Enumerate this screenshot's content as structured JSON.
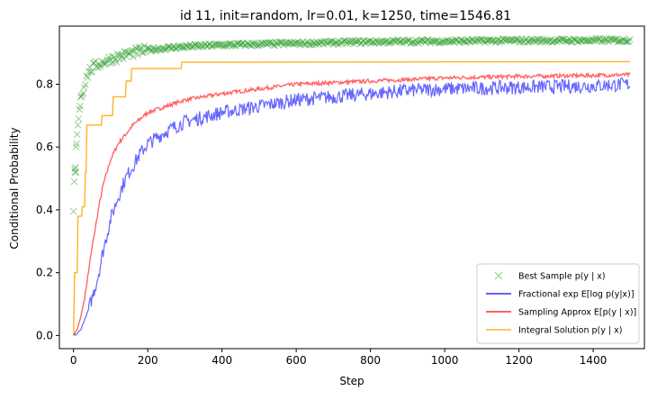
{
  "chart_data": {
    "type": "line",
    "title": "id 11, init=random, lr=0.01, k=1250, time=1546.81",
    "xlabel": "Step",
    "ylabel": "Conditional Probability",
    "xlim": [
      -38,
      1538
    ],
    "ylim": [
      -0.042,
      0.985
    ],
    "xticks": [
      0,
      200,
      400,
      600,
      800,
      1000,
      1200,
      1400
    ],
    "xtick_labels": [
      "0",
      "200",
      "400",
      "600",
      "800",
      "1000",
      "1200",
      "1400"
    ],
    "yticks": [
      0.0,
      0.2,
      0.4,
      0.6,
      0.8
    ],
    "ytick_labels": [
      "0.0",
      "0.2",
      "0.4",
      "0.6",
      "0.8"
    ],
    "grid": false,
    "legend_position": "lower-right",
    "series": [
      {
        "name": "Best Sample p(y | x)",
        "marker": "x",
        "color": "#2ca02c",
        "points": [
          [
            0,
            0.395
          ],
          [
            2,
            0.49
          ],
          [
            3,
            0.53
          ],
          [
            4,
            0.52
          ],
          [
            5,
            0.535
          ],
          [
            7,
            0.6
          ],
          [
            8,
            0.62
          ],
          [
            10,
            0.64
          ],
          [
            12,
            0.67
          ],
          [
            14,
            0.69
          ],
          [
            16,
            0.72
          ],
          [
            18,
            0.73
          ],
          [
            20,
            0.76
          ],
          [
            25,
            0.78
          ],
          [
            30,
            0.8
          ],
          [
            35,
            0.82
          ],
          [
            40,
            0.84
          ],
          [
            50,
            0.85
          ],
          [
            60,
            0.86
          ],
          [
            80,
            0.87
          ],
          [
            100,
            0.88
          ],
          [
            130,
            0.89
          ],
          [
            160,
            0.9
          ],
          [
            200,
            0.91
          ],
          [
            300,
            0.92
          ],
          [
            400,
            0.925
          ],
          [
            600,
            0.93
          ],
          [
            800,
            0.935
          ],
          [
            1000,
            0.937
          ],
          [
            1200,
            0.939
          ],
          [
            1500,
            0.94
          ]
        ]
      },
      {
        "name": "Fractional exp E[log p(y|x)]",
        "color": "#0000ff",
        "points": [
          [
            0,
            0.0
          ],
          [
            10,
            0.005
          ],
          [
            20,
            0.02
          ],
          [
            30,
            0.05
          ],
          [
            40,
            0.08
          ],
          [
            50,
            0.12
          ],
          [
            60,
            0.16
          ],
          [
            70,
            0.21
          ],
          [
            80,
            0.27
          ],
          [
            90,
            0.32
          ],
          [
            100,
            0.37
          ],
          [
            120,
            0.44
          ],
          [
            140,
            0.5
          ],
          [
            160,
            0.54
          ],
          [
            180,
            0.58
          ],
          [
            200,
            0.61
          ],
          [
            250,
            0.65
          ],
          [
            300,
            0.68
          ],
          [
            400,
            0.71
          ],
          [
            500,
            0.73
          ],
          [
            600,
            0.75
          ],
          [
            700,
            0.76
          ],
          [
            800,
            0.77
          ],
          [
            900,
            0.78
          ],
          [
            1000,
            0.785
          ],
          [
            1200,
            0.79
          ],
          [
            1400,
            0.795
          ],
          [
            1500,
            0.8
          ]
        ]
      },
      {
        "name": "Sampling Approx E[p(y | x)]",
        "color": "#ff0000",
        "points": [
          [
            0,
            0.0
          ],
          [
            10,
            0.02
          ],
          [
            20,
            0.06
          ],
          [
            30,
            0.12
          ],
          [
            40,
            0.2
          ],
          [
            50,
            0.28
          ],
          [
            60,
            0.35
          ],
          [
            70,
            0.42
          ],
          [
            80,
            0.48
          ],
          [
            90,
            0.52
          ],
          [
            100,
            0.56
          ],
          [
            120,
            0.61
          ],
          [
            140,
            0.64
          ],
          [
            160,
            0.67
          ],
          [
            180,
            0.69
          ],
          [
            200,
            0.71
          ],
          [
            250,
            0.73
          ],
          [
            300,
            0.75
          ],
          [
            400,
            0.77
          ],
          [
            500,
            0.785
          ],
          [
            600,
            0.8
          ],
          [
            700,
            0.805
          ],
          [
            800,
            0.81
          ],
          [
            900,
            0.815
          ],
          [
            1000,
            0.82
          ],
          [
            1200,
            0.825
          ],
          [
            1400,
            0.828
          ],
          [
            1500,
            0.83
          ]
        ]
      },
      {
        "name": "Integral Solution p(y | x)",
        "color": "#ffa500",
        "points": [
          [
            0,
            0.0
          ],
          [
            3,
            0.2
          ],
          [
            10,
            0.2
          ],
          [
            12,
            0.38
          ],
          [
            22,
            0.38
          ],
          [
            24,
            0.41
          ],
          [
            30,
            0.41
          ],
          [
            32,
            0.52
          ],
          [
            34,
            0.52
          ],
          [
            36,
            0.67
          ],
          [
            75,
            0.67
          ],
          [
            77,
            0.7
          ],
          [
            105,
            0.7
          ],
          [
            107,
            0.76
          ],
          [
            140,
            0.76
          ],
          [
            142,
            0.81
          ],
          [
            155,
            0.81
          ],
          [
            157,
            0.85
          ],
          [
            290,
            0.85
          ],
          [
            292,
            0.87
          ],
          [
            1500,
            0.872
          ]
        ]
      }
    ]
  }
}
